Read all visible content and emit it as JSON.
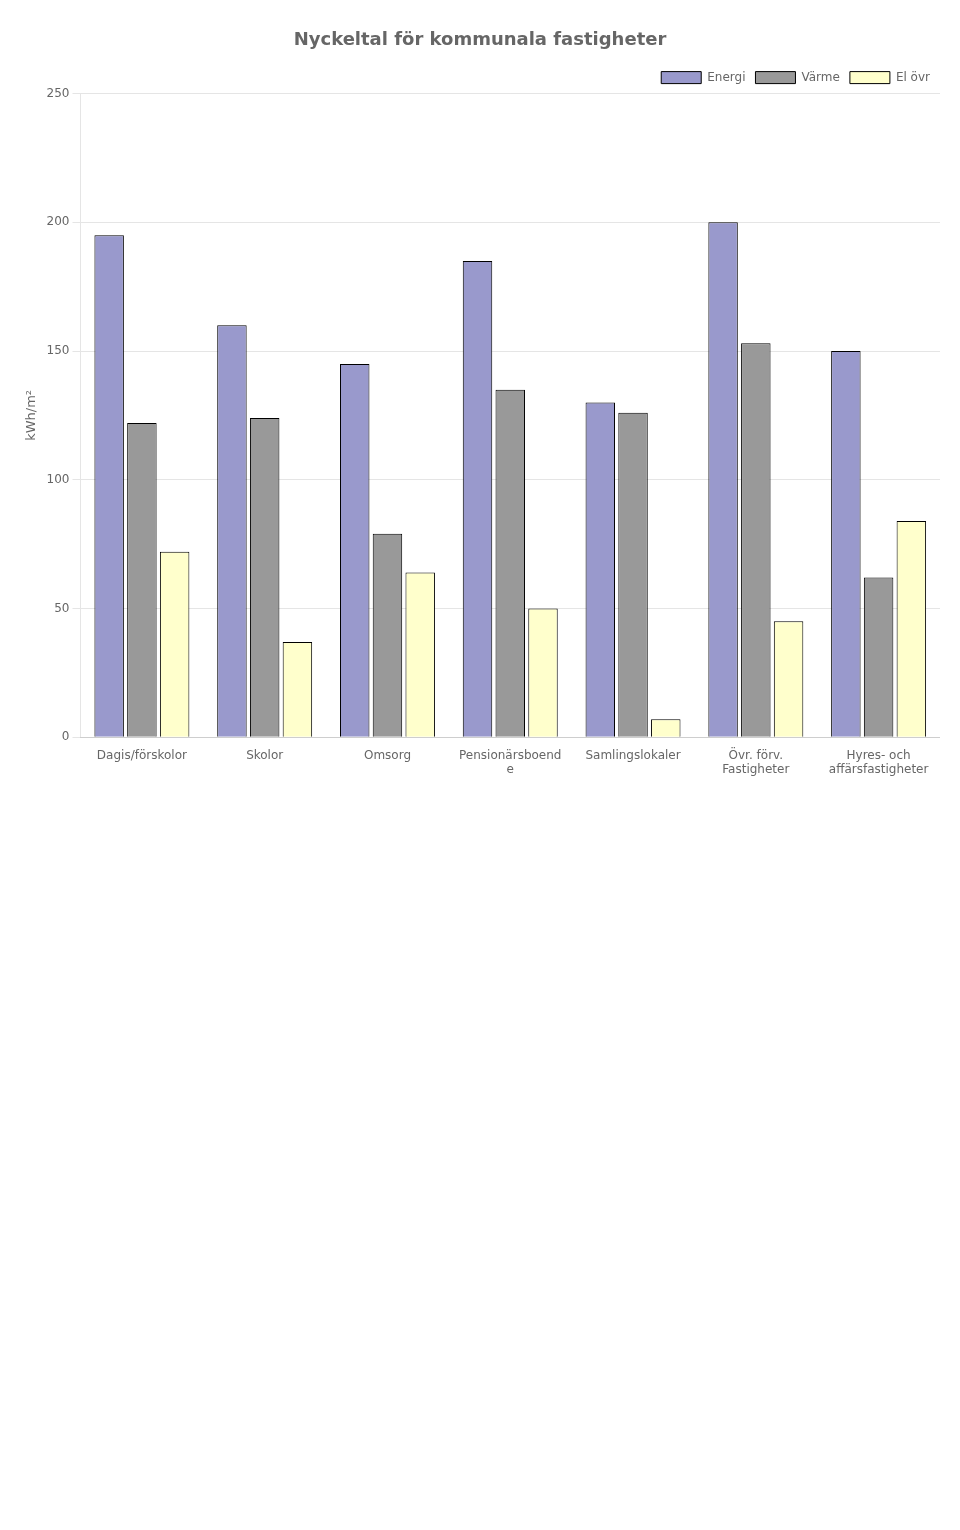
{
  "chart_data": {
    "type": "bar",
    "title": "Nyckeltal för kommunala fastigheter",
    "ylabel": "kWh/m²",
    "categories": [
      "Dagis/förskolor",
      "Skolor",
      "Omsorg",
      "Pensionärsboend\ne",
      "Samlingslokaler",
      "Övr. förv.\nFastigheter",
      "Hyres- och\naffärsfastigheter"
    ],
    "series": [
      {
        "name": "Energi",
        "color": "#9999cc",
        "values": [
          195,
          160,
          145,
          185,
          130,
          200,
          150
        ]
      },
      {
        "name": "Värme",
        "color": "#999999",
        "values": [
          122,
          124,
          79,
          135,
          126,
          153,
          62
        ]
      },
      {
        "name": "El övr",
        "color": "#ffffcc",
        "values": [
          72,
          37,
          64,
          50,
          7,
          45,
          84
        ]
      }
    ],
    "ylim": [
      0,
      250
    ],
    "yticks": [
      0,
      50,
      100,
      150,
      200,
      250
    ],
    "grid": true,
    "legend": "upper right"
  }
}
